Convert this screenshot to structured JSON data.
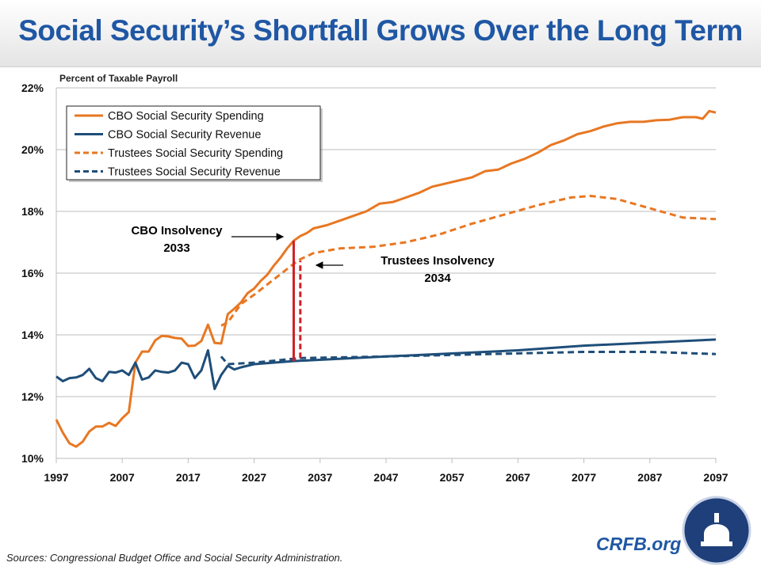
{
  "title": "Social Security’s Shortfall Grows Over the Long Term",
  "source": "Sources: Congressional Budget Office and Social Security Administration.",
  "brand": "CRFB.org",
  "chart_data": {
    "type": "line",
    "title": "Social Security’s Shortfall Grows Over the Long Term",
    "ylabel": "Percent of Taxable Payroll",
    "xlim": [
      1997,
      2097
    ],
    "ylim": [
      10,
      22
    ],
    "xticks": [
      "1997",
      "2007",
      "2017",
      "2027",
      "2037",
      "2047",
      "2057",
      "2067",
      "2077",
      "2087",
      "2097"
    ],
    "yticks": [
      "10%",
      "12%",
      "14%",
      "16%",
      "18%",
      "20%",
      "22%"
    ],
    "grid": "horizontal",
    "legend_position": "top-left",
    "series": [
      {
        "name": "CBO Social Security Spending",
        "color": "#e87722",
        "dash": false,
        "x": [
          1997,
          1998,
          1999,
          2000,
          2001,
          2002,
          2003,
          2004,
          2005,
          2006,
          2007,
          2008,
          2009,
          2010,
          2011,
          2012,
          2013,
          2014,
          2015,
          2016,
          2017,
          2018,
          2019,
          2020,
          2021,
          2022,
          2023,
          2024,
          2025,
          2026,
          2027,
          2028,
          2029,
          2030,
          2031,
          2032,
          2033,
          2034,
          2035,
          2036,
          2037,
          2038,
          2040,
          2042,
          2044,
          2046,
          2048,
          2050,
          2052,
          2054,
          2056,
          2058,
          2060,
          2062,
          2064,
          2066,
          2068,
          2070,
          2072,
          2074,
          2076,
          2078,
          2080,
          2082,
          2084,
          2086,
          2088,
          2090,
          2092,
          2094,
          2095,
          2096,
          2097
        ],
        "y": [
          11.26,
          10.83,
          10.49,
          10.38,
          10.54,
          10.87,
          11.03,
          11.03,
          11.15,
          11.05,
          11.3,
          11.5,
          13.1,
          13.46,
          13.46,
          13.82,
          13.97,
          13.95,
          13.9,
          13.88,
          13.64,
          13.65,
          13.8,
          14.33,
          13.74,
          13.72,
          14.67,
          14.85,
          15.05,
          15.35,
          15.5,
          15.75,
          15.95,
          16.25,
          16.5,
          16.8,
          17.05,
          17.2,
          17.3,
          17.45,
          17.5,
          17.55,
          17.7,
          17.85,
          18.0,
          18.25,
          18.3,
          18.45,
          18.6,
          18.8,
          18.9,
          19.0,
          19.1,
          19.3,
          19.35,
          19.55,
          19.7,
          19.9,
          20.15,
          20.3,
          20.5,
          20.6,
          20.75,
          20.85,
          20.9,
          20.9,
          20.95,
          20.97,
          21.05,
          21.05,
          21.0,
          21.25,
          21.2
        ]
      },
      {
        "name": "CBO Social Security Revenue",
        "color": "#1f4e79",
        "dash": false,
        "x": [
          1997,
          1998,
          1999,
          2000,
          2001,
          2002,
          2003,
          2004,
          2005,
          2006,
          2007,
          2008,
          2009,
          2010,
          2011,
          2012,
          2013,
          2014,
          2015,
          2016,
          2017,
          2018,
          2019,
          2020,
          2021,
          2022,
          2023,
          2024,
          2025,
          2027,
          2033,
          2047,
          2067,
          2077,
          2087,
          2097
        ],
        "y": [
          12.65,
          12.5,
          12.6,
          12.62,
          12.7,
          12.9,
          12.6,
          12.5,
          12.8,
          12.78,
          12.85,
          12.7,
          13.1,
          12.55,
          12.62,
          12.85,
          12.8,
          12.78,
          12.85,
          13.1,
          13.05,
          12.6,
          12.85,
          13.5,
          12.25,
          12.7,
          13.0,
          12.88,
          12.95,
          13.05,
          13.15,
          13.3,
          13.5,
          13.65,
          13.75,
          13.85
        ]
      },
      {
        "name": "Trustees Social Security Spending",
        "color": "#e87722",
        "dash": true,
        "x": [
          2022,
          2023,
          2025,
          2027,
          2030,
          2033,
          2034,
          2036,
          2040,
          2045,
          2050,
          2055,
          2060,
          2065,
          2070,
          2075,
          2078,
          2082,
          2087,
          2092,
          2097
        ],
        "y": [
          14.3,
          14.4,
          15.0,
          15.3,
          15.8,
          16.3,
          16.45,
          16.65,
          16.8,
          16.85,
          17.0,
          17.25,
          17.6,
          17.9,
          18.2,
          18.45,
          18.5,
          18.4,
          18.1,
          17.8,
          17.75
        ]
      },
      {
        "name": "Trustees Social Security Revenue",
        "color": "#1f4e79",
        "dash": true,
        "x": [
          2022,
          2023,
          2027,
          2034,
          2047,
          2067,
          2077,
          2087,
          2097
        ],
        "y": [
          13.3,
          13.05,
          13.1,
          13.25,
          13.3,
          13.4,
          13.45,
          13.45,
          13.38
        ]
      }
    ],
    "annotations": [
      {
        "label": "CBO Insolvency",
        "year_label": "2033",
        "x": 2033,
        "y_from": 13.15,
        "y_to": 17.05,
        "dash": false
      },
      {
        "label": "Trustees Insolvency",
        "year_label": "2034",
        "x": 2034,
        "y_from": 13.25,
        "y_to": 16.4,
        "dash": true
      }
    ],
    "annotation_color": "#d11f26"
  }
}
